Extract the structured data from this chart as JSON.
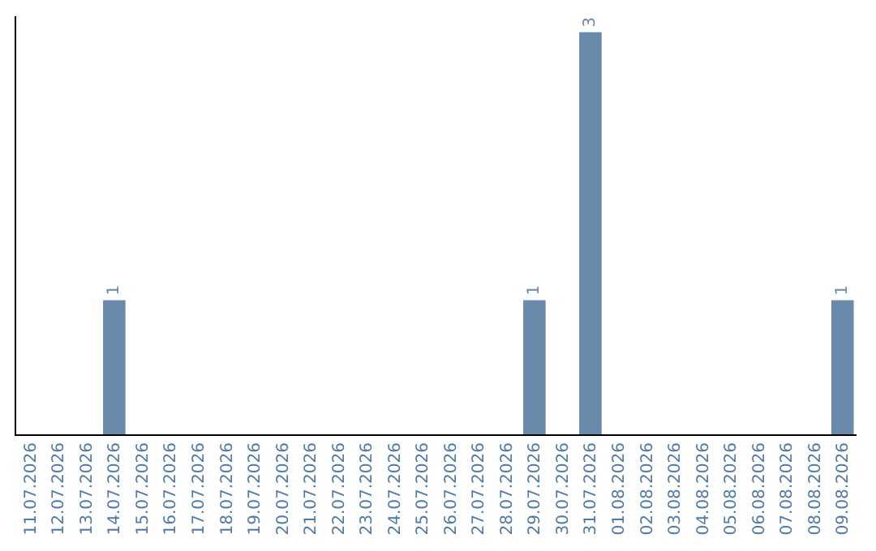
{
  "chart_data": {
    "type": "bar",
    "categories": [
      "11.07.2026",
      "12.07.2026",
      "13.07.2026",
      "14.07.2026",
      "15.07.2026",
      "16.07.2026",
      "17.07.2026",
      "18.07.2026",
      "19.07.2026",
      "20.07.2026",
      "21.07.2026",
      "22.07.2026",
      "23.07.2026",
      "24.07.2026",
      "25.07.2026",
      "26.07.2026",
      "27.07.2026",
      "28.07.2026",
      "29.07.2026",
      "30.07.2026",
      "31.07.2026",
      "01.08.2026",
      "02.08.2026",
      "03.08.2026",
      "04.08.2026",
      "05.08.2026",
      "06.08.2026",
      "07.08.2026",
      "08.08.2026",
      "09.08.2026"
    ],
    "values": [
      0,
      0,
      0,
      1,
      0,
      0,
      0,
      0,
      0,
      0,
      0,
      0,
      0,
      0,
      0,
      0,
      0,
      0,
      1,
      0,
      3,
      0,
      0,
      0,
      0,
      0,
      0,
      0,
      0,
      1
    ],
    "value_labels": [
      null,
      null,
      null,
      "1",
      null,
      null,
      null,
      null,
      null,
      null,
      null,
      null,
      null,
      null,
      null,
      null,
      null,
      null,
      "1",
      null,
      "3",
      null,
      null,
      null,
      null,
      null,
      null,
      null,
      null,
      "1"
    ],
    "color": "#6a8aab",
    "tick_labels": "x",
    "legend": false
  }
}
